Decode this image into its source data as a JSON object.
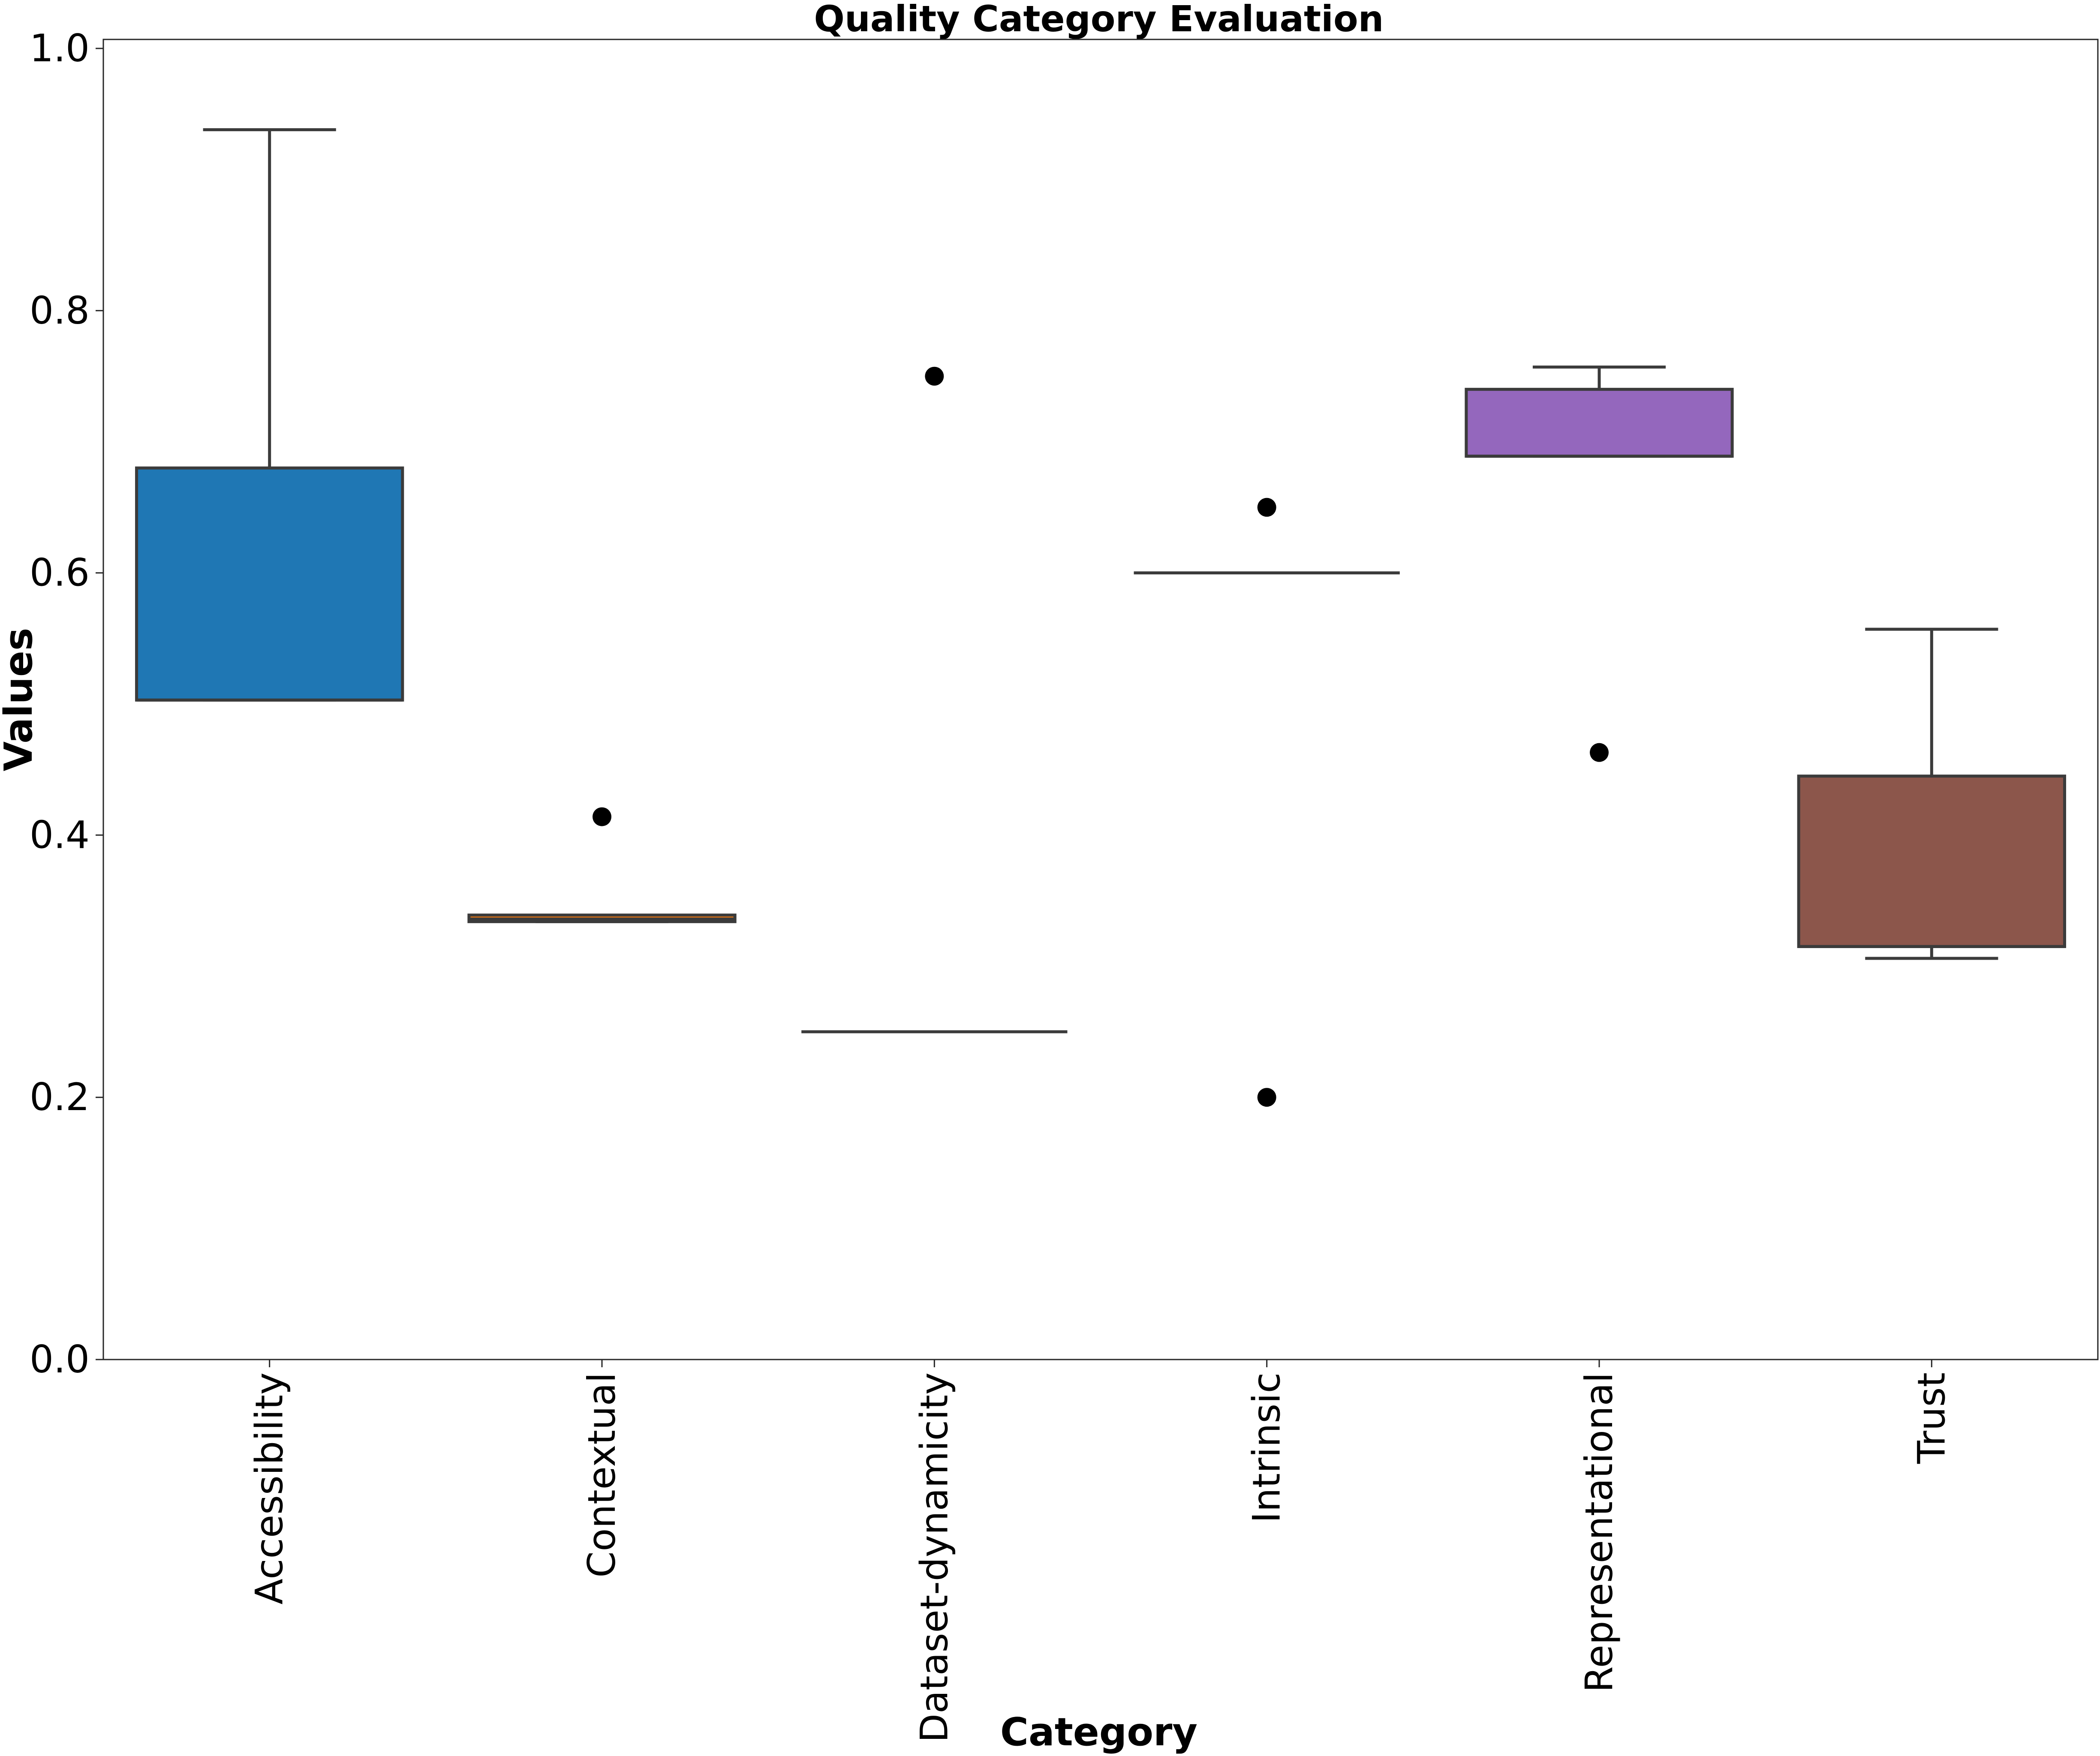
{
  "chart_data": {
    "type": "box",
    "title": "Quality Category Evaluation",
    "xlabel": "Category",
    "ylabel": "Values",
    "ylim": [
      0.0,
      1.0
    ],
    "yticks": [
      "0.0",
      "0.2",
      "0.4",
      "0.6",
      "0.8",
      "1.0"
    ],
    "grid": false,
    "categories": [
      "Accessibility",
      "Contextual",
      "Dataset-dynamicity",
      "Intrinsic",
      "Representational",
      "Trust"
    ],
    "boxes": [
      {
        "category": "Accessibility",
        "color": "#1f77b4",
        "whisker_low": 0.503,
        "q1": 0.503,
        "median": 0.503,
        "q3": 0.68,
        "whisker_high": 0.938,
        "fliers": []
      },
      {
        "category": "Contextual",
        "color": "#ff7f0e",
        "whisker_low": 0.334,
        "q1": 0.334,
        "median": 0.336,
        "q3": 0.339,
        "whisker_high": 0.339,
        "fliers": [
          0.414
        ]
      },
      {
        "category": "Dataset-dynamicity",
        "color": "#2ca02c",
        "whisker_low": 0.25,
        "q1": 0.25,
        "median": 0.25,
        "q3": 0.25,
        "whisker_high": 0.25,
        "fliers": [
          0.75
        ]
      },
      {
        "category": "Intrinsic",
        "color": "#d62728",
        "whisker_low": 0.6,
        "q1": 0.6,
        "median": 0.6,
        "q3": 0.6,
        "whisker_high": 0.6,
        "fliers": [
          0.65,
          0.2
        ]
      },
      {
        "category": "Representational",
        "color": "#9467bd",
        "whisker_low": 0.689,
        "q1": 0.689,
        "median": 0.689,
        "q3": 0.74,
        "whisker_high": 0.757,
        "fliers": [
          0.463
        ]
      },
      {
        "category": "Trust",
        "color": "#8c564b",
        "whisker_low": 0.306,
        "q1": 0.315,
        "median": 0.315,
        "q3": 0.445,
        "whisker_high": 0.557,
        "fliers": []
      }
    ]
  }
}
